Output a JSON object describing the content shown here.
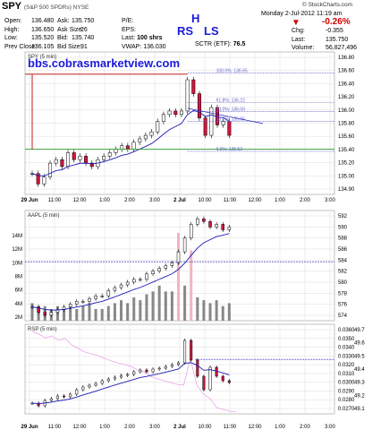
{
  "header": {
    "symbol": "SPY",
    "description": "(S&P 500 SPDRs) NYSE",
    "brand": "© StockCharts.com",
    "timestamp": "Monday  2-Jul-2012  11:19 am"
  },
  "quote": {
    "open": {
      "label": "Open:",
      "value": "136.480"
    },
    "high": {
      "label": "High:",
      "value": "136.650"
    },
    "low": {
      "label": "Low:",
      "value": "135.520"
    },
    "prev_close": {
      "label": "Prev Close:",
      "value": "136.105"
    },
    "ask": {
      "label": "Ask:",
      "value": "135.750"
    },
    "ask_size": {
      "label": "Ask Size:",
      "value": "26"
    },
    "bid": {
      "label": "Bid:",
      "value": "135.740"
    },
    "bid_size": {
      "label": "Bid Size:",
      "value": "91"
    },
    "pe": {
      "label": "P/E:"
    },
    "eps": {
      "label": "EPS:"
    },
    "last_size": {
      "label": "Last:",
      "value": "100 shrs"
    },
    "vwap": {
      "label": "VWAP:",
      "value": "136.030"
    },
    "sctr": {
      "label": "SCTR (ETF):",
      "value": "76.5"
    },
    "pct_change": "-0.26%",
    "chg": {
      "label": "Chg:",
      "value": "-0.355"
    },
    "last": {
      "label": "Last:",
      "value": "135.750"
    },
    "volume": {
      "label": "Volume:",
      "value": "56,827,496"
    }
  },
  "annotations": {
    "head": "H",
    "rs": "RS",
    "ls": "LS",
    "watermark": "bbs.cobrasmarketview.com"
  },
  "colors": {
    "up": "#ffffff",
    "down": "#d4143c",
    "candle_edge": "#000000",
    "ma": "#1a1ab4",
    "fib": "#6666cc",
    "support": "#2ca02c",
    "resistance": "#c00000",
    "volume": "#888888",
    "volume_highlight": "#f4b3c2",
    "overbought_pink": "#e8a6e8",
    "grid": "#dddddd"
  },
  "chart_data": [
    {
      "type": "candlestick",
      "panel": "price",
      "label": "SPY (5 min)",
      "ylim": [
        134.9,
        136.95
      ],
      "yticks": [
        "136.80",
        "136.60",
        "136.40",
        "136.20",
        "136.00",
        "135.80",
        "135.60",
        "135.40",
        "135.20",
        "135.00",
        "134.90"
      ],
      "x_categories": [
        "29 Jun",
        "11:00",
        "12:00",
        "1:00",
        "2:00",
        "3:00",
        "2 Jul",
        "10:00",
        "11:00",
        "12:00",
        "1:00",
        "2:00",
        "3:00"
      ],
      "fib_levels": [
        {
          "label": "100.0%: 136.65",
          "value": 136.65
        },
        {
          "label": "61.8%: 136.22",
          "value": 136.22
        },
        {
          "label": "50.0%: 136.09",
          "value": 136.09
        },
        {
          "label": "38.2%: 135.95",
          "value": 135.95
        },
        {
          "label": "0.0%: 135.52",
          "value": 135.52
        }
      ],
      "support_line": 135.55,
      "resistance_line": 136.63,
      "close_series": [
        135.2,
        135.05,
        135.15,
        135.35,
        135.4,
        135.3,
        135.5,
        135.4,
        135.45,
        135.35,
        135.3,
        135.4,
        135.45,
        135.5,
        135.55,
        135.6,
        135.55,
        135.65,
        135.7,
        135.75,
        135.8,
        135.95,
        136.05,
        136.1,
        136.05,
        136.1,
        136.55,
        136.35,
        136.0,
        135.75,
        136.15,
        135.9,
        135.95,
        135.75
      ]
    },
    {
      "type": "candlestick",
      "panel": "aapl",
      "label": "AAPL (5 min)",
      "ylim": [
        573.5,
        593.5
      ],
      "yticks": [
        "592",
        "590",
        "588",
        "586",
        "584",
        "582",
        "580",
        "578",
        "576",
        "574"
      ],
      "volume_ticks": [
        "14M",
        "12M",
        "10M",
        "8M",
        "6M",
        "4M",
        "2M"
      ],
      "reference_level": 584.2,
      "close_series": [
        576,
        575,
        574.5,
        575,
        575.5,
        576,
        576.5,
        577,
        577,
        577.5,
        578,
        578,
        579,
        579.5,
        580,
        580.5,
        581,
        581,
        582,
        582.5,
        583,
        583.5,
        584,
        586,
        588.5,
        591,
        592,
        591.5,
        590.5,
        591,
        590,
        590.5
      ],
      "volume": [
        3,
        2.5,
        2.5,
        2,
        2.5,
        2,
        2.5,
        2,
        2.5,
        3,
        2,
        2,
        2.5,
        3,
        3.5,
        3,
        4,
        3.5,
        4.5,
        5,
        6,
        5,
        5,
        15,
        6,
        12,
        4,
        3.5,
        3,
        3.5,
        2.5,
        3
      ]
    },
    {
      "type": "candlestick",
      "panel": "rsp",
      "label": "RSP (5 min)",
      "ylim": [
        0.0263,
        0.0363
      ],
      "yticks": [
        "0.0360",
        "0.0350",
        "0.0340",
        "0.0330",
        "0.0320",
        "0.0310",
        "0.0300",
        "0.0290",
        "0.0280",
        "0.0270"
      ],
      "right_ticks": [
        "49.7",
        "49.6",
        "49.5",
        "49.4",
        "49.3",
        "49.2",
        "49.1"
      ],
      "reference_level": 49.48,
      "right_ylim": [
        49.03,
        49.77
      ],
      "close_series": [
        0.0275,
        0.0272,
        0.0278,
        0.028,
        0.0283,
        0.0282,
        0.0285,
        0.029,
        0.0293,
        0.0295,
        0.0297,
        0.03,
        0.0302,
        0.0304,
        0.0306,
        0.0307,
        0.031,
        0.0312,
        0.031,
        0.0313,
        0.0314,
        0.0316,
        0.0318,
        0.032,
        0.0345,
        0.0323,
        0.0305,
        0.029,
        0.0315,
        0.0305,
        0.03,
        0.0298
      ]
    }
  ]
}
